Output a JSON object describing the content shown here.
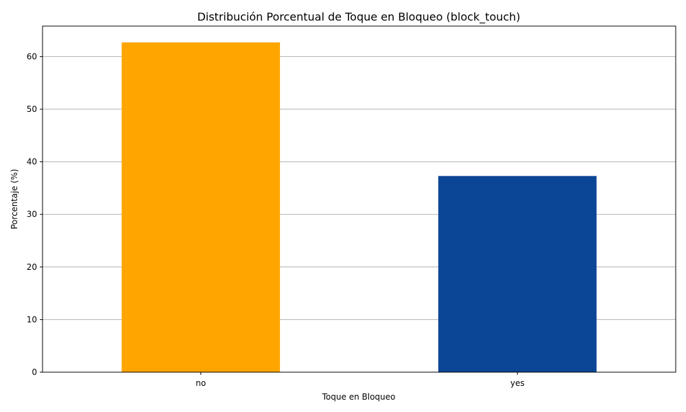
{
  "chart_data": {
    "type": "bar",
    "title": "Distribución Porcentual de Toque en Bloqueo (block_touch)",
    "xlabel": "Toque en Bloqueo",
    "ylabel": "Porcentaje (%)",
    "categories": [
      "no",
      "yes"
    ],
    "values": [
      62.7,
      37.3
    ],
    "bar_colors": [
      "#ffa500",
      "#0b4596"
    ],
    "ylim": [
      0,
      65.8
    ],
    "yticks": [
      0,
      10,
      20,
      30,
      40,
      50,
      60
    ],
    "grid": "horizontal",
    "legend": "none"
  }
}
